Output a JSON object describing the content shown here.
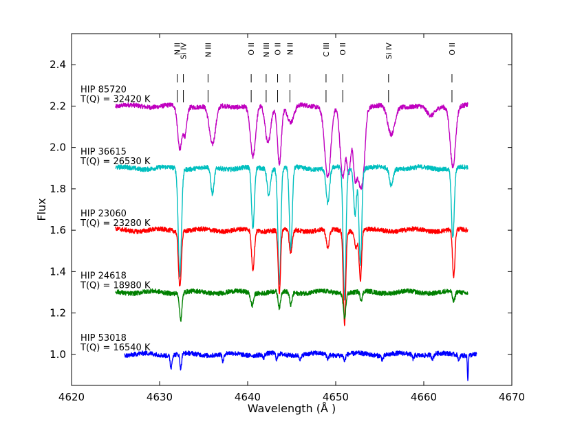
{
  "chart_data": {
    "type": "line",
    "title": "",
    "xlabel": "Wavelength (Å )",
    "ylabel": "Flux",
    "xlim": [
      4620,
      4670
    ],
    "ylim": [
      0.85,
      2.55
    ],
    "x_ticks": [
      "4620",
      "4630",
      "4640",
      "4650",
      "4660",
      "4670"
    ],
    "y_ticks": [
      "1.0",
      "1.2",
      "1.4",
      "1.6",
      "1.8",
      "2.0",
      "2.2",
      "2.4"
    ],
    "grid": false,
    "line_ids": [
      {
        "label": "N II",
        "x": 4632.0
      },
      {
        "label": "Si IV",
        "x": 4632.7
      },
      {
        "label": "N III",
        "x": 4635.5
      },
      {
        "label": "O II",
        "x": 4640.4
      },
      {
        "label": "N III",
        "x": 4642.1
      },
      {
        "label": "O II",
        "x": 4643.4
      },
      {
        "label": "N II",
        "x": 4644.8
      },
      {
        "label": "C III",
        "x": 4648.9
      },
      {
        "label": "O II",
        "x": 4650.8
      },
      {
        "label": "Si IV",
        "x": 4656.0
      },
      {
        "label": "O II",
        "x": 4663.2
      }
    ],
    "series": [
      {
        "name": "HIP 85720",
        "temperature": "T(Q) = 32420 K",
        "color": "#bf00bf",
        "baseline": 2.2,
        "x_start": 4625.0,
        "x_end": 4665.0,
        "lines": [
          [
            4632.3,
            0.21,
            0.25
          ],
          [
            4632.9,
            0.13,
            0.2
          ],
          [
            4636.0,
            0.19,
            0.35
          ],
          [
            4640.6,
            0.25,
            0.3
          ],
          [
            4642.3,
            0.18,
            0.3
          ],
          [
            4643.6,
            0.27,
            0.22
          ],
          [
            4644.9,
            0.08,
            0.35
          ],
          [
            4649.1,
            0.34,
            0.35
          ],
          [
            4650.8,
            0.35,
            0.3
          ],
          [
            4651.5,
            0.3,
            0.22
          ],
          [
            4652.2,
            0.34,
            0.25
          ],
          [
            4652.7,
            0.25,
            0.22
          ],
          [
            4653.1,
            0.3,
            0.25
          ],
          [
            4656.3,
            0.14,
            0.4
          ],
          [
            4663.3,
            0.29,
            0.3
          ],
          [
            4660.8,
            0.05,
            0.5
          ]
        ]
      },
      {
        "name": "HIP 36615",
        "temperature": "T(Q) = 26530 K",
        "color": "#00bfbf",
        "baseline": 1.9,
        "x_start": 4625.0,
        "x_end": 4665.0,
        "lines": [
          [
            4632.3,
            0.52,
            0.18
          ],
          [
            4636.0,
            0.13,
            0.18
          ],
          [
            4640.6,
            0.3,
            0.16
          ],
          [
            4642.4,
            0.13,
            0.18
          ],
          [
            4643.6,
            0.56,
            0.16
          ],
          [
            4644.9,
            0.4,
            0.16
          ],
          [
            4649.1,
            0.17,
            0.2
          ],
          [
            4651.0,
            0.63,
            0.16
          ],
          [
            4652.2,
            0.22,
            0.16
          ],
          [
            4652.8,
            0.46,
            0.16
          ],
          [
            4656.3,
            0.08,
            0.2
          ],
          [
            4663.3,
            0.34,
            0.16
          ]
        ]
      },
      {
        "name": "HIP 23060",
        "temperature": "T(Q) = 23280 K",
        "color": "#ff0000",
        "baseline": 1.6,
        "x_start": 4625.0,
        "x_end": 4665.0,
        "lines": [
          [
            4632.3,
            0.27,
            0.16
          ],
          [
            4640.6,
            0.19,
            0.16
          ],
          [
            4643.6,
            0.3,
            0.14
          ],
          [
            4644.9,
            0.12,
            0.16
          ],
          [
            4649.1,
            0.09,
            0.18
          ],
          [
            4651.0,
            0.45,
            0.14
          ],
          [
            4652.3,
            0.08,
            0.16
          ],
          [
            4652.8,
            0.24,
            0.14
          ],
          [
            4663.4,
            0.23,
            0.14
          ]
        ]
      },
      {
        "name": "HIP 24618",
        "temperature": "T(Q) = 18980 K",
        "color": "#008000",
        "baseline": 1.3,
        "x_start": 4625.0,
        "x_end": 4665.0,
        "lines": [
          [
            4632.4,
            0.13,
            0.14
          ],
          [
            4640.5,
            0.06,
            0.16
          ],
          [
            4643.6,
            0.08,
            0.14
          ],
          [
            4644.9,
            0.06,
            0.14
          ],
          [
            4651.0,
            0.12,
            0.14
          ],
          [
            4652.9,
            0.04,
            0.14
          ],
          [
            4663.4,
            0.05,
            0.14
          ]
        ]
      },
      {
        "name": "HIP 53018",
        "temperature": "T(Q) = 16540 K",
        "color": "#0000ff",
        "baseline": 1.0,
        "x_start": 4626.0,
        "x_end": 4666.0,
        "lines": [
          [
            4631.3,
            0.06,
            0.1
          ],
          [
            4632.4,
            0.07,
            0.1
          ],
          [
            4637.2,
            0.04,
            0.1
          ],
          [
            4641.8,
            0.02,
            0.1
          ],
          [
            4643.3,
            0.03,
            0.1
          ],
          [
            4646.0,
            0.02,
            0.12
          ],
          [
            4649.1,
            0.02,
            0.1
          ],
          [
            4651.0,
            0.03,
            0.1
          ],
          [
            4655.3,
            0.02,
            0.12
          ],
          [
            4658.8,
            0.02,
            0.1
          ],
          [
            4661.0,
            0.02,
            0.12
          ],
          [
            4664.0,
            0.03,
            0.08
          ],
          [
            4665.0,
            0.12,
            0.05
          ]
        ]
      }
    ]
  }
}
